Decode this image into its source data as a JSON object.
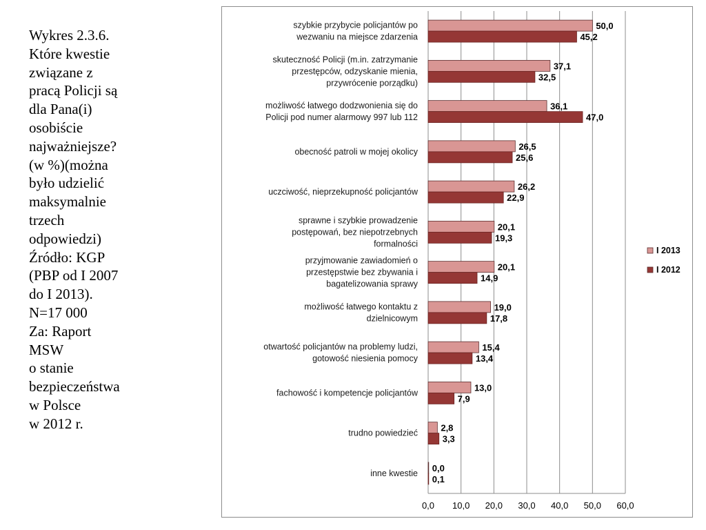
{
  "caption": {
    "lines": [
      "Wykres 2.3.6.",
      "Które kwestie",
      "związane z",
      "pracą Policji są",
      "dla Pana(i)",
      "osobiście",
      "najważniejsze?",
      "(w %)(można",
      "było udzielić",
      "maksymalnie",
      "trzech",
      "odpowiedzi)",
      "Źródło: KGP",
      "(PBP od I 2007",
      "do I 2013).",
      "N=17 000",
      "Za: Raport",
      "MSW",
      "o stanie",
      "bezpieczeństwa",
      "w Polsce",
      "w 2012 r."
    ]
  },
  "colors": {
    "series_2013": "#d99694",
    "series_2012": "#953735",
    "grid": "#8c8c8c"
  },
  "chart_data": {
    "type": "bar",
    "orientation": "horizontal",
    "categories": [
      [
        "szybkie przybycie policjantów po",
        "wezwaniu na miejsce zdarzenia"
      ],
      [
        "skuteczność Policji (m.in. zatrzymanie",
        "przestępców, odzyskanie mienia,",
        "przywrócenie porządku)"
      ],
      [
        "możliwość łatwego dodzwonienia się do",
        "Policji pod numer alarmowy 997 lub 112"
      ],
      [
        "obecność patroli w mojej okolicy"
      ],
      [
        "uczciwość, nieprzekupność policjantów"
      ],
      [
        "sprawne i szybkie prowadzenie",
        "postępowań, bez niepotrzebnych",
        "formalności"
      ],
      [
        "przyjmowanie zawiadomień o",
        "przestępstwie bez zbywania i",
        "bagatelizowania sprawy"
      ],
      [
        "możliwość łatwego kontaktu z",
        "dzielnicowym"
      ],
      [
        "otwartość policjantów na problemy ludzi,",
        "gotowość niesienia pomocy"
      ],
      [
        "fachowość i kompetencje policjantów"
      ],
      [
        "trudno powiedzieć"
      ],
      [
        "inne kwestie"
      ]
    ],
    "series": [
      {
        "name": "I 2013",
        "values": [
          50.0,
          37.1,
          36.1,
          26.5,
          26.2,
          20.1,
          20.1,
          19.0,
          15.4,
          13.0,
          2.8,
          0.0
        ],
        "labels": [
          "50,0",
          "37,1",
          "36,1",
          "26,5",
          "26,2",
          "20,1",
          "20,1",
          "19,0",
          "15,4",
          "13,0",
          "2,8",
          "0,0"
        ]
      },
      {
        "name": "I 2012",
        "values": [
          45.2,
          32.5,
          47.0,
          25.6,
          22.9,
          19.3,
          14.9,
          17.8,
          13.4,
          7.9,
          3.3,
          0.1
        ],
        "labels": [
          "45,2",
          "32,5",
          "47,0",
          "25,6",
          "22,9",
          "19,3",
          "14,9",
          "17,8",
          "13,4",
          "7,9",
          "3,3",
          "0,1"
        ]
      }
    ],
    "xlim": [
      0,
      60
    ],
    "xticks": [
      "0,0",
      "10,0",
      "20,0",
      "30,0",
      "40,0",
      "50,0",
      "60,0"
    ],
    "grid": true,
    "legend": "right",
    "legend_entries": [
      "I 2013",
      "I 2012"
    ]
  }
}
